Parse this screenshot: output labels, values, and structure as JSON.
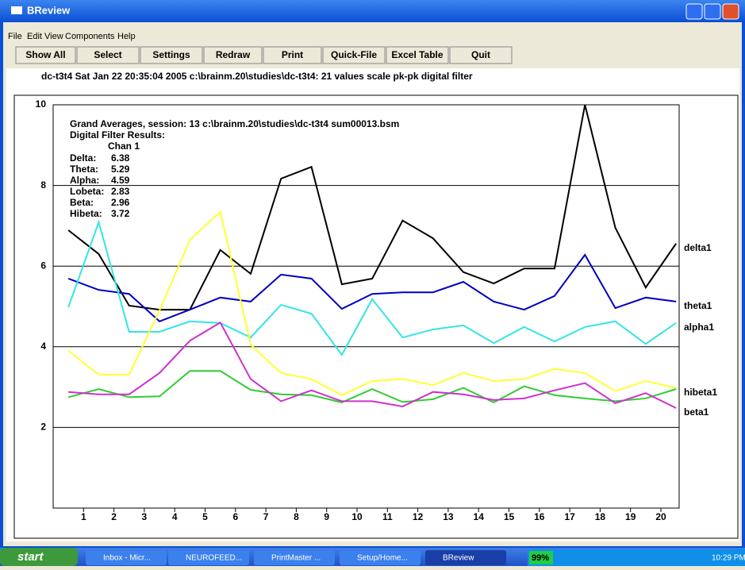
{
  "window": {
    "title": "BReview"
  },
  "menu": [
    "File",
    "Edit",
    "View",
    "Components",
    "Help"
  ],
  "toolbar": [
    "Show All",
    "Select",
    "Settings",
    "Redraw",
    "Print",
    "Quick-File",
    "Excel Table",
    "Quit"
  ],
  "info_line": "dc-t3t4   Sat Jan 22 20:35:04 2005   c:\\brainm.20\\studies\\dc-t3t4: 21 values scale pk-pk digital filter",
  "results": {
    "heading": "Grand Averages, session: 13 c:\\brainm.20\\studies\\dc-t3t4 sum00013.bsm",
    "subheading": "Digital Filter Results:",
    "channel": "Chan 1",
    "rows": [
      [
        "Delta:",
        "6.38"
      ],
      [
        "Theta:",
        "5.29"
      ],
      [
        "Alpha:",
        "4.59"
      ],
      [
        "Lobeta:",
        "2.83"
      ],
      [
        "Beta:",
        "2.96"
      ],
      [
        "Hibeta:",
        "3.72"
      ]
    ]
  },
  "chart_data": {
    "type": "line",
    "x": [
      0.5,
      1.5,
      2.5,
      3.5,
      4.5,
      5.5,
      6.5,
      7.5,
      8.5,
      9.5,
      10.5,
      11.5,
      12.5,
      13.5,
      14.5,
      15.5,
      16.5,
      17.5,
      18.5,
      19.5,
      20.5
    ],
    "xlim": [
      0,
      20.6
    ],
    "xticks": [
      1,
      2,
      3,
      4,
      5,
      6,
      7,
      8,
      9,
      10,
      11,
      12,
      13,
      14,
      15,
      16,
      17,
      18,
      19,
      20
    ],
    "ylim": [
      0,
      10
    ],
    "yticks": [
      2,
      4,
      6,
      8,
      10
    ],
    "grid": true,
    "series": [
      {
        "name": "delta1",
        "color": "#000000",
        "values": [
          6.89,
          6.3,
          5.02,
          4.92,
          4.92,
          6.4,
          5.81,
          8.17,
          8.46,
          5.55,
          5.69,
          7.13,
          6.69,
          5.85,
          5.57,
          5.94,
          5.94,
          10,
          6.95,
          5.47,
          6.56
        ]
      },
      {
        "name": "theta1",
        "color": "#0000c0",
        "values": [
          5.69,
          5.41,
          5.31,
          4.63,
          4.92,
          5.22,
          5.12,
          5.79,
          5.69,
          4.94,
          5.31,
          5.35,
          5.35,
          5.61,
          5.12,
          4.92,
          5.26,
          6.28,
          4.96,
          5.22,
          5.12
        ]
      },
      {
        "name": "alpha1",
        "color": "#33e5e5",
        "values": [
          4.98,
          7.09,
          4.37,
          4.37,
          4.63,
          4.59,
          4.23,
          5.04,
          4.82,
          3.8,
          5.18,
          4.23,
          4.43,
          4.53,
          4.09,
          4.49,
          4.13,
          4.49,
          4.63,
          4.07,
          4.59
        ]
      },
      {
        "name": "hibeta1",
        "color": "#ffff33",
        "values": [
          3.9,
          3.31,
          3.31,
          4.9,
          6.65,
          7.35,
          4.05,
          3.35,
          3.2,
          2.8,
          3.15,
          3.2,
          3.05,
          3.35,
          3.15,
          3.2,
          3.45,
          3.35,
          2.9,
          3.15,
          2.98
        ]
      },
      {
        "color": "#33cc33",
        "values": [
          2.75,
          2.95,
          2.75,
          2.77,
          3.4,
          3.4,
          2.93,
          2.82,
          2.8,
          2.62,
          2.95,
          2.63,
          2.7,
          2.98,
          2.62,
          3.02,
          2.8,
          2.72,
          2.65,
          2.72,
          2.95
        ]
      },
      {
        "name": "beta1",
        "color": "#cc33cc",
        "values": [
          2.88,
          2.82,
          2.82,
          3.35,
          4.15,
          4.6,
          3.2,
          2.65,
          2.92,
          2.65,
          2.65,
          2.52,
          2.88,
          2.82,
          2.68,
          2.72,
          2.92,
          3.1,
          2.6,
          2.85,
          2.48
        ]
      }
    ]
  },
  "taskbar": {
    "start": "start",
    "items": [
      "Inbox - Micr...",
      "NEUROFEED...",
      "PrintMaster ...",
      "Setup/Home...",
      "BReview"
    ],
    "battery": "99%",
    "clock": "10:29 PM"
  }
}
